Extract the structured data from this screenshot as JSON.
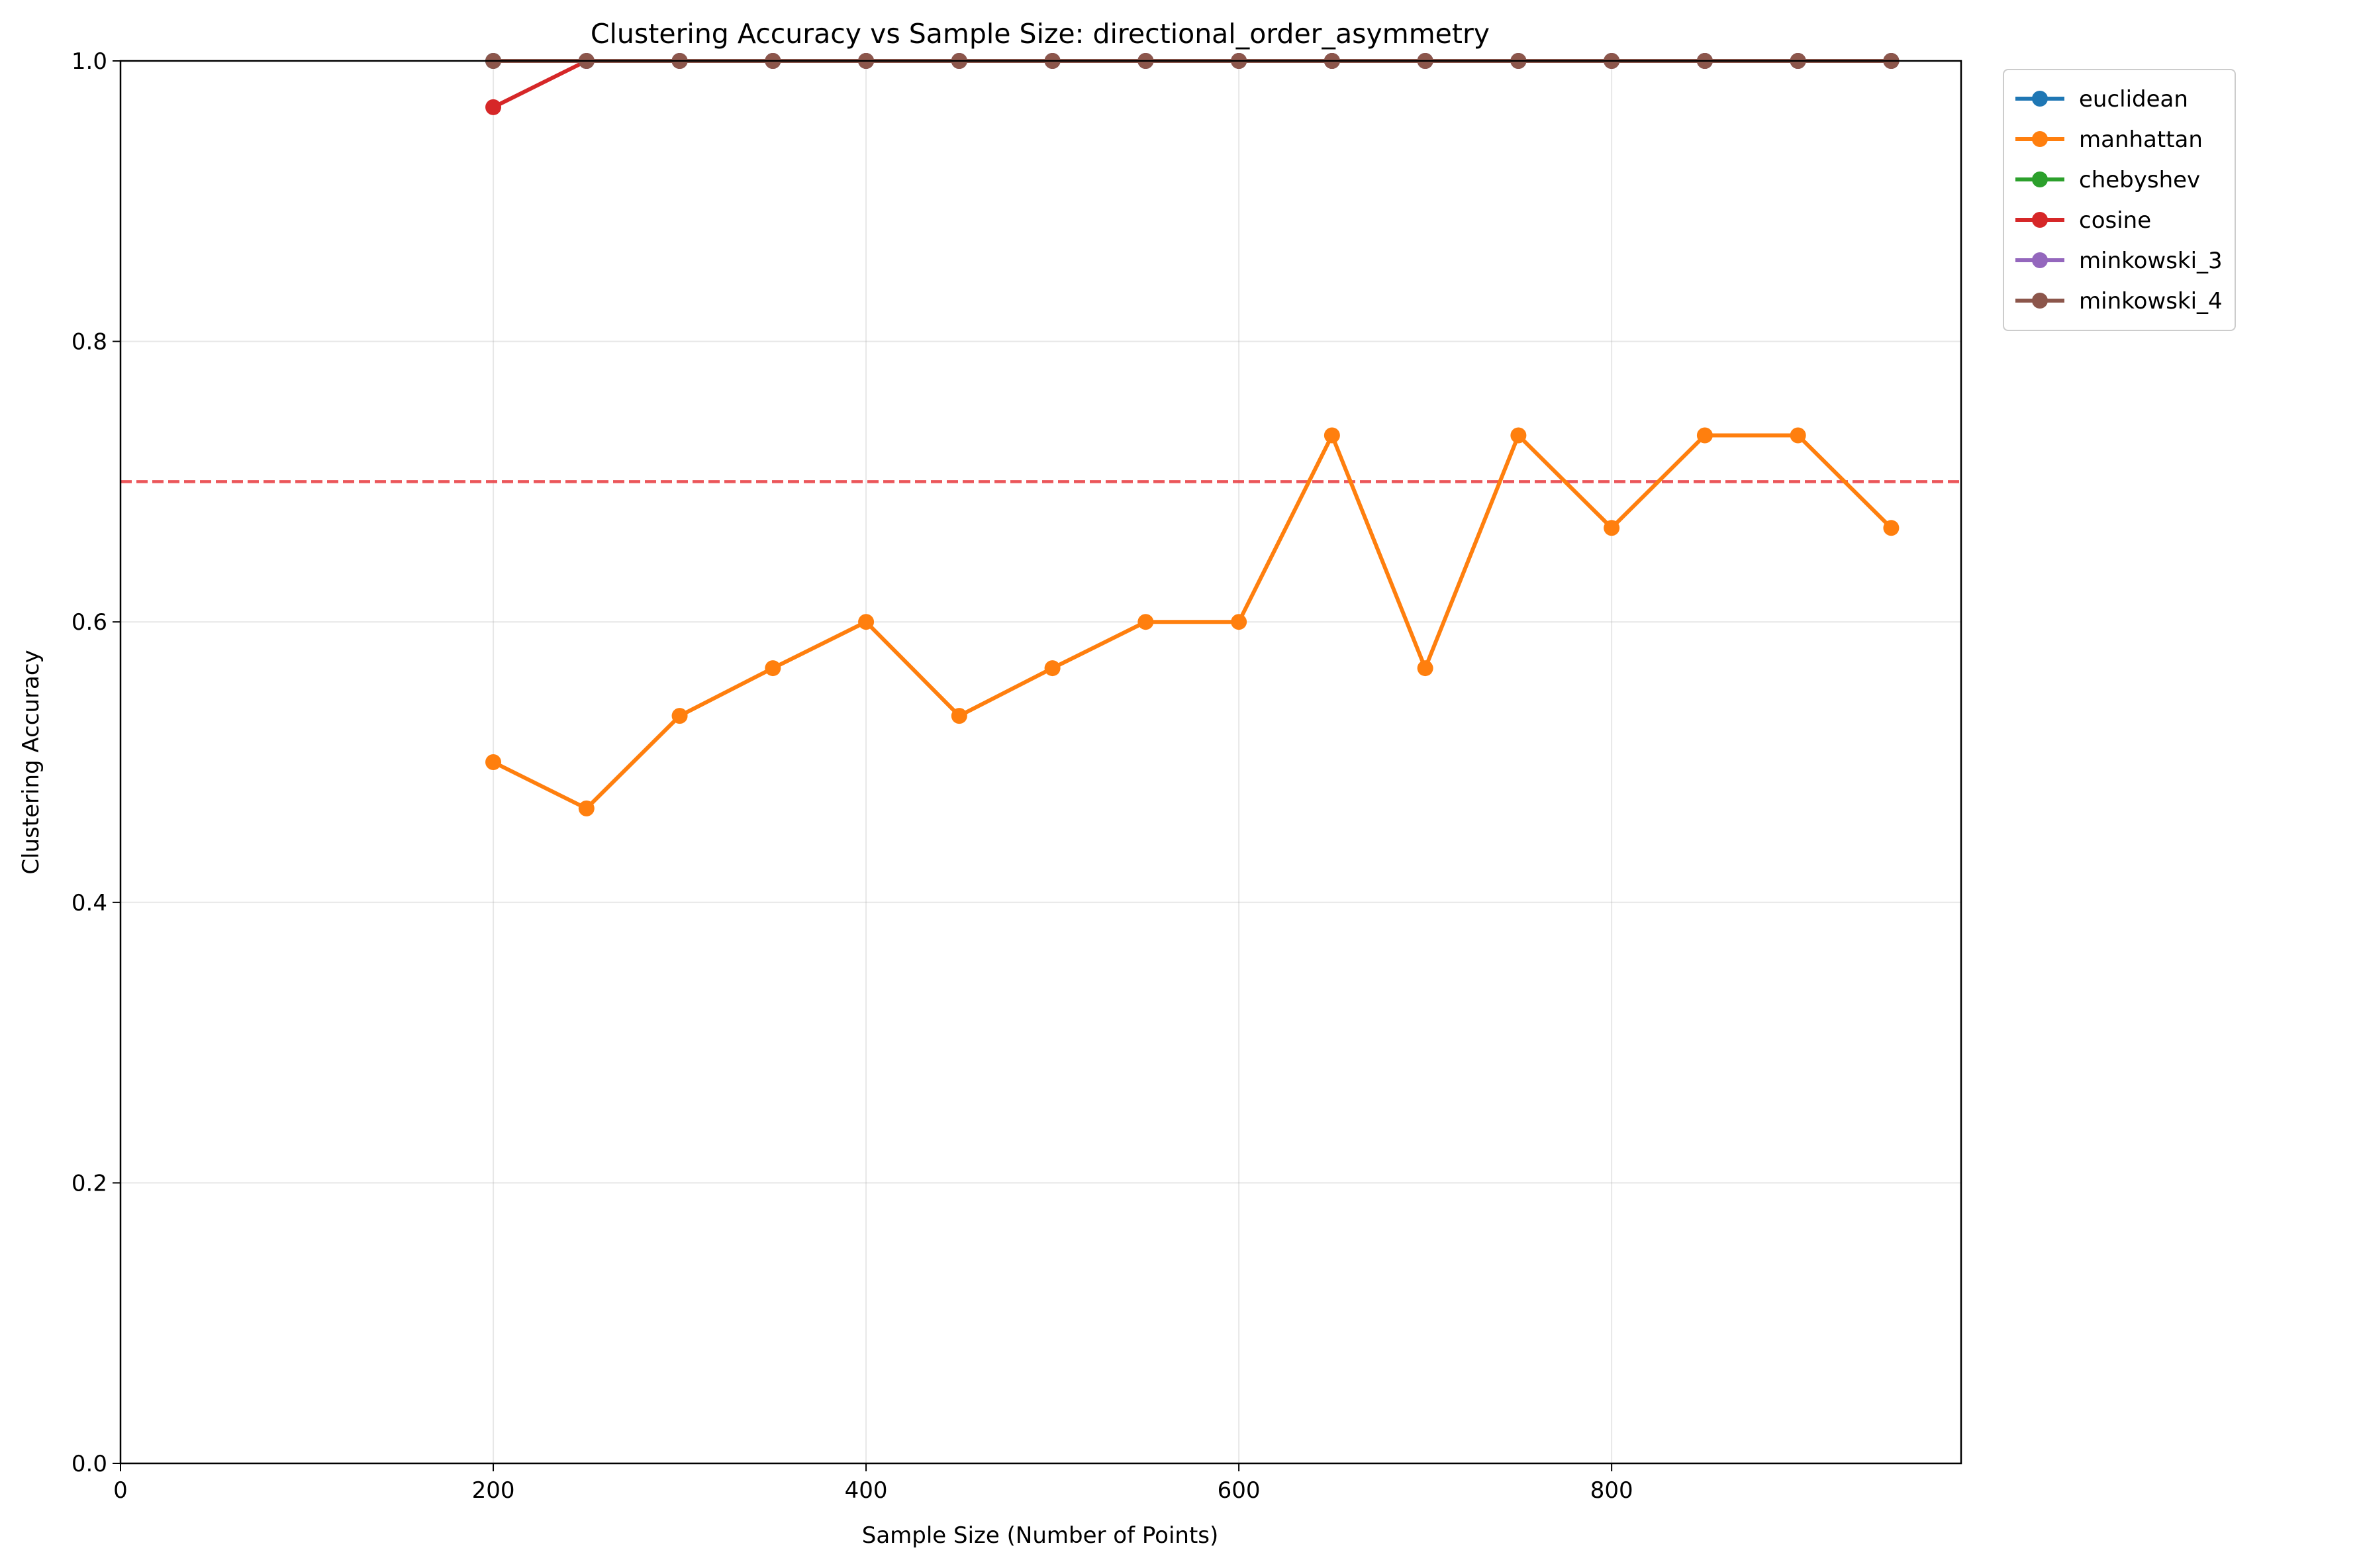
{
  "chart_data": {
    "type": "line",
    "title": "Clustering Accuracy vs Sample Size: directional_order_asymmetry",
    "xlabel": "Sample Size (Number of Points)",
    "ylabel": "Clustering Accuracy",
    "xlim": [
      0,
      987.5
    ],
    "ylim": [
      0,
      1.0
    ],
    "xticks": [
      0,
      200,
      400,
      600,
      800
    ],
    "yticks": [
      0.0,
      0.2,
      0.4,
      0.6,
      0.8,
      1.0
    ],
    "xtick_labels": [
      "0",
      "200",
      "400",
      "600",
      "800"
    ],
    "ytick_labels": [
      "0.0",
      "0.2",
      "0.4",
      "0.6",
      "0.8",
      "1.0"
    ],
    "grid": true,
    "legend_position": "outside-top-right",
    "x": [
      200,
      250,
      300,
      350,
      400,
      450,
      500,
      550,
      600,
      650,
      700,
      750,
      800,
      850,
      900,
      950
    ],
    "reference_line": {
      "y": 0.7,
      "color": "#e8383d",
      "style": "dashed"
    },
    "series": [
      {
        "name": "euclidean",
        "color": "#1f77b4",
        "values": [
          1,
          1,
          1,
          1,
          1,
          1,
          1,
          1,
          1,
          1,
          1,
          1,
          1,
          1,
          1,
          1
        ]
      },
      {
        "name": "manhattan",
        "color": "#ff7f0e",
        "values": [
          0.5,
          0.467,
          0.533,
          0.567,
          0.6,
          0.533,
          0.567,
          0.6,
          0.6,
          0.733,
          0.567,
          0.733,
          0.667,
          0.733,
          0.733,
          0.667
        ]
      },
      {
        "name": "chebyshev",
        "color": "#2ca02c",
        "values": [
          1,
          1,
          1,
          1,
          1,
          1,
          1,
          1,
          1,
          1,
          1,
          1,
          1,
          1,
          1,
          1
        ]
      },
      {
        "name": "cosine",
        "color": "#d62728",
        "values": [
          0.967,
          1,
          1,
          1,
          1,
          1,
          1,
          1,
          1,
          1,
          1,
          1,
          1,
          1,
          1,
          1
        ]
      },
      {
        "name": "minkowski_3",
        "color": "#9467bd",
        "values": [
          1,
          1,
          1,
          1,
          1,
          1,
          1,
          1,
          1,
          1,
          1,
          1,
          1,
          1,
          1,
          1
        ]
      },
      {
        "name": "minkowski_4",
        "color": "#8c564b",
        "values": [
          1,
          1,
          1,
          1,
          1,
          1,
          1,
          1,
          1,
          1,
          1,
          1,
          1,
          1,
          1,
          1
        ]
      }
    ]
  }
}
